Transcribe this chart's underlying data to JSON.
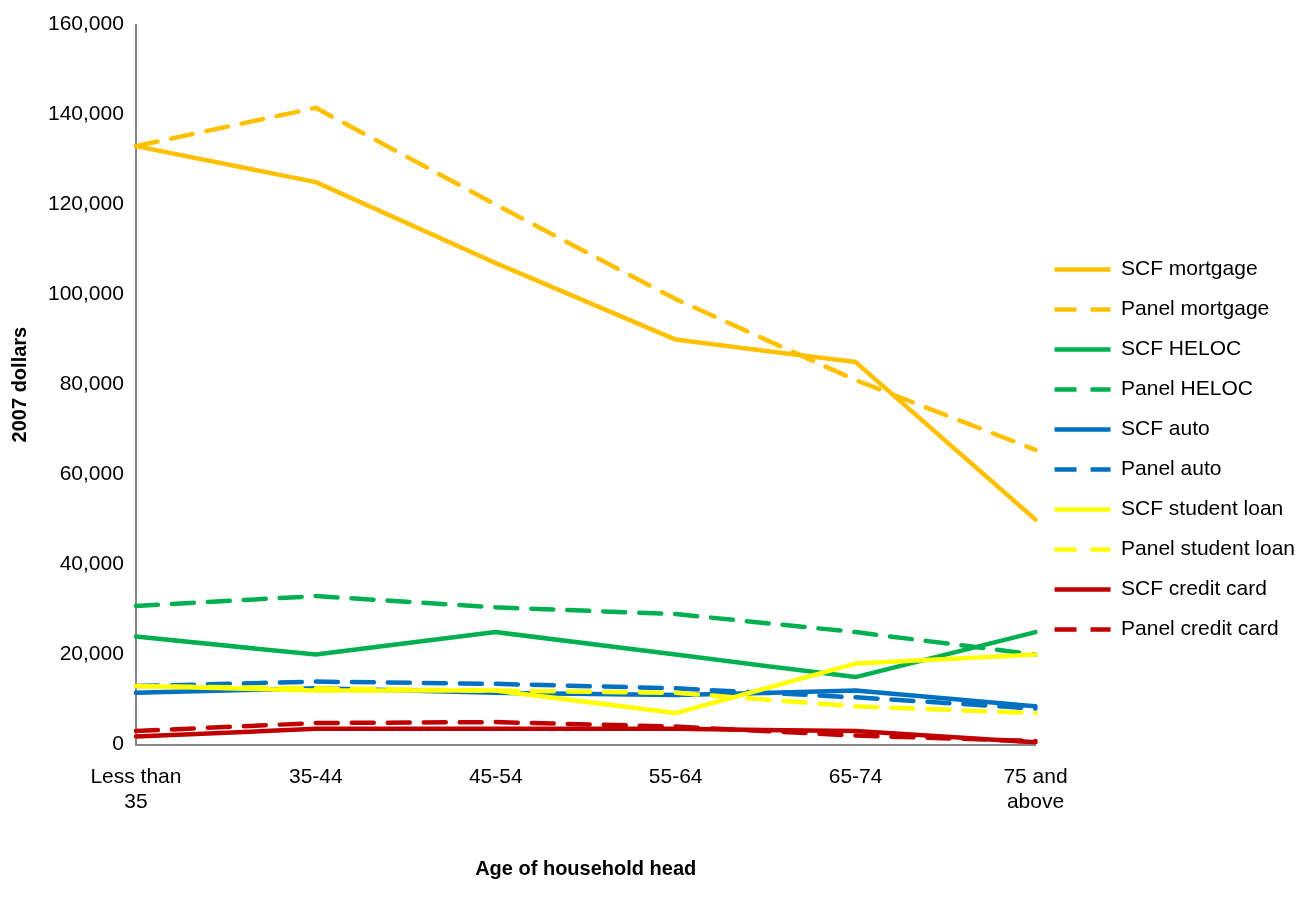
{
  "chart_data": {
    "type": "line",
    "xlabel": "Age of household head",
    "ylabel": "2007 dollars",
    "categories": [
      "Less than 35",
      "35-44",
      "45-54",
      "55-64",
      "65-74",
      "75 and above"
    ],
    "ylim": [
      0,
      160000
    ],
    "yticks": [
      {
        "value": 0,
        "label": "0"
      },
      {
        "value": 20000,
        "label": "20,000"
      },
      {
        "value": 40000,
        "label": "40,000"
      },
      {
        "value": 60000,
        "label": "60,000"
      },
      {
        "value": 80000,
        "label": "80,000"
      },
      {
        "value": 100000,
        "label": "100,000"
      },
      {
        "value": 120000,
        "label": "120,000"
      },
      {
        "value": 140000,
        "label": "140,000"
      },
      {
        "value": 160000,
        "label": "160,000"
      }
    ],
    "grid": false,
    "legend": "right",
    "marker": "none",
    "series": [
      {
        "name": "SCF mortgage",
        "color": "#ffc000",
        "line_style": "solid",
        "values": [
          133000,
          125000,
          107000,
          90000,
          85000,
          50000
        ]
      },
      {
        "name": "Panel mortgage",
        "color": "#ffc000",
        "line_style": "dashed",
        "values": [
          133000,
          141500,
          120000,
          99000,
          81000,
          65500
        ]
      },
      {
        "name": "SCF HELOC",
        "color": "#00b050",
        "line_style": "solid",
        "values": [
          24000,
          20000,
          25000,
          20000,
          15000,
          25000
        ]
      },
      {
        "name": "Panel HELOC",
        "color": "#00b050",
        "line_style": "dashed",
        "values": [
          30800,
          33000,
          30500,
          29000,
          25000,
          20000
        ]
      },
      {
        "name": "SCF auto",
        "color": "#0070c0",
        "line_style": "solid",
        "values": [
          11500,
          12500,
          11500,
          11000,
          12000,
          8500
        ]
      },
      {
        "name": "Panel auto",
        "color": "#0070c0",
        "line_style": "dashed",
        "values": [
          13000,
          14000,
          13500,
          12500,
          10500,
          8000
        ]
      },
      {
        "name": "SCF student loan",
        "color": "#ffff00",
        "line_style": "solid",
        "values": [
          13000,
          12000,
          12000,
          7000,
          18000,
          20000
        ]
      },
      {
        "name": "Panel student loan",
        "color": "#ffff00",
        "line_style": "dashed",
        "values": [
          13000,
          12500,
          12000,
          11500,
          8500,
          7000
        ]
      },
      {
        "name": "SCF credit card",
        "color": "#c00000",
        "line_style": "solid",
        "values": [
          1800,
          3500,
          3500,
          3500,
          3000,
          500
        ]
      },
      {
        "name": "Panel credit card",
        "color": "#c00000",
        "line_style": "dashed",
        "values": [
          3000,
          4800,
          5000,
          4000,
          2000,
          800
        ]
      }
    ]
  }
}
